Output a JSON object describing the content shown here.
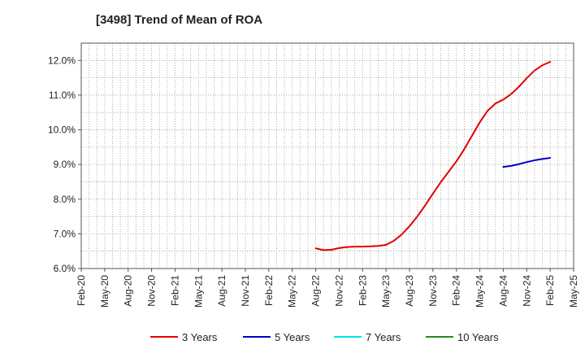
{
  "chart_data": {
    "type": "line",
    "title": "[3498]  Trend of Mean of ROA",
    "xlabel": "",
    "ylabel": "",
    "x_tick_labels": [
      "Feb-20",
      "May-20",
      "Aug-20",
      "Nov-20",
      "Feb-21",
      "May-21",
      "Aug-21",
      "Nov-21",
      "Feb-22",
      "May-22",
      "Aug-22",
      "Nov-22",
      "Feb-23",
      "May-23",
      "Aug-23",
      "Nov-23",
      "Feb-24",
      "May-24",
      "Aug-24",
      "Nov-24",
      "Feb-25",
      "May-25"
    ],
    "y_tick_labels": [
      "6.0%",
      "7.0%",
      "8.0%",
      "9.0%",
      "10.0%",
      "11.0%",
      "12.0%"
    ],
    "y_ticks": [
      6,
      7,
      8,
      9,
      10,
      11,
      12
    ],
    "ylim": [
      6.0,
      12.5
    ],
    "x_range_months": [
      0,
      63
    ],
    "grid": true,
    "legend_position": "bottom",
    "series": [
      {
        "name": "3 Years",
        "color": "#e00000",
        "x": [
          "Aug-22",
          "Sep-22",
          "Oct-22",
          "Nov-22",
          "Dec-22",
          "Jan-23",
          "Feb-23",
          "Mar-23",
          "Apr-23",
          "May-23",
          "Jun-23",
          "Jul-23",
          "Aug-23",
          "Sep-23",
          "Oct-23",
          "Nov-23",
          "Dec-23",
          "Jan-24",
          "Feb-24",
          "Mar-24",
          "Apr-24",
          "May-24",
          "Jun-24",
          "Jul-24",
          "Aug-24",
          "Sep-24",
          "Oct-24",
          "Nov-24",
          "Dec-24",
          "Jan-25",
          "Feb-25"
        ],
        "x_months": [
          30,
          31,
          32,
          33,
          34,
          35,
          36,
          37,
          38,
          39,
          40,
          41,
          42,
          43,
          44,
          45,
          46,
          47,
          48,
          49,
          50,
          51,
          52,
          53,
          54,
          55,
          56,
          57,
          58,
          59,
          60
        ],
        "values": [
          6.58,
          6.53,
          6.54,
          6.59,
          6.62,
          6.63,
          6.63,
          6.64,
          6.65,
          6.68,
          6.8,
          6.98,
          7.22,
          7.5,
          7.82,
          8.16,
          8.49,
          8.79,
          9.09,
          9.44,
          9.83,
          10.22,
          10.55,
          10.76,
          10.87,
          11.03,
          11.24,
          11.49,
          11.71,
          11.86,
          11.96
        ]
      },
      {
        "name": "5 Years",
        "color": "#0000cc",
        "x": [
          "Aug-24",
          "Sep-24",
          "Oct-24",
          "Nov-24",
          "Dec-24",
          "Jan-25",
          "Feb-25"
        ],
        "x_months": [
          54,
          55,
          56,
          57,
          58,
          59,
          60
        ],
        "values": [
          8.93,
          8.96,
          9.01,
          9.07,
          9.12,
          9.16,
          9.19
        ]
      },
      {
        "name": "7 Years",
        "color": "#00e5ee",
        "x": [],
        "x_months": [],
        "values": []
      },
      {
        "name": "10 Years",
        "color": "#228b22",
        "x": [],
        "x_months": [],
        "values": []
      }
    ]
  }
}
